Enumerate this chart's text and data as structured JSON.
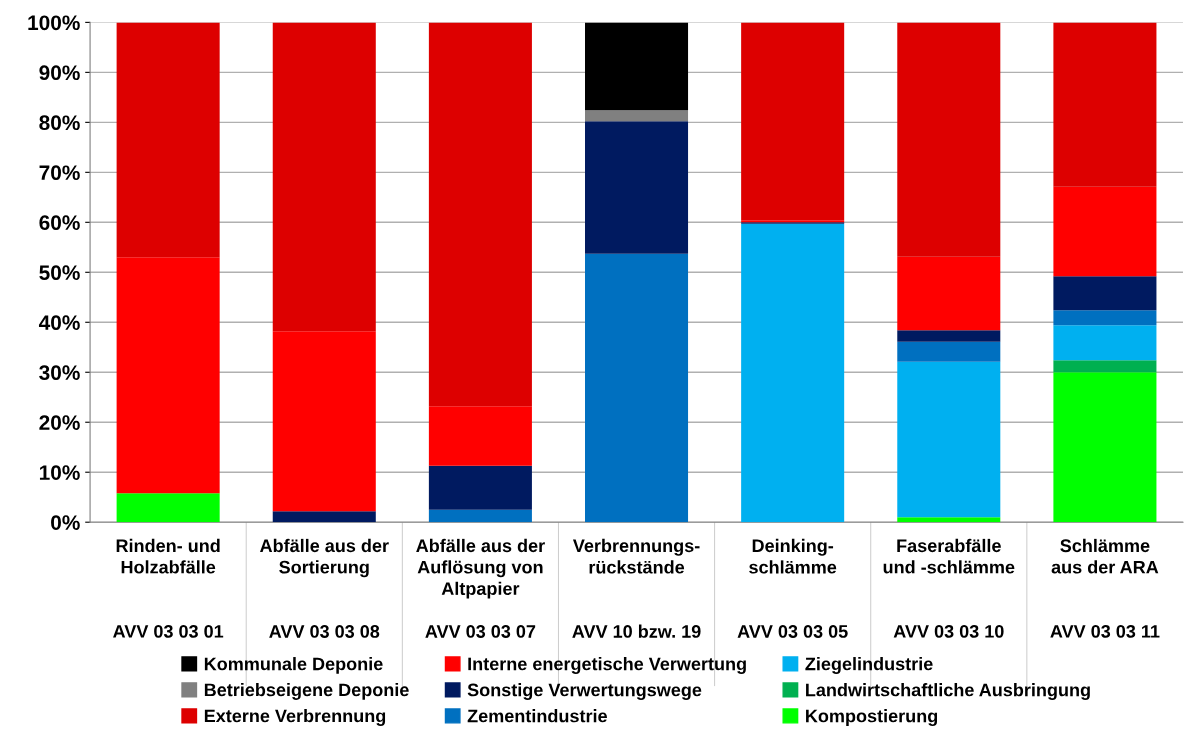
{
  "chart_data": {
    "type": "bar",
    "stacked": true,
    "categories": [
      "Rinden- und\nHolzabfälle\n\nAVV 03 03 01",
      "Abfälle aus der\nSortierung\n\nAVV 03 03 08",
      "Abfälle aus der\nAuflösung von\nAltpapier\n\nAVV 03 03 07",
      "Verbrennungs-\nrückstände\n\nAVV 10 bzw. 19",
      "Deinking-\nschlämme\n\nAVV 03 03 05",
      "Faserabfälle\nund -schlämme\n\nAVV 03 03 10",
      "Schlämme\naus der ARA\n\nAVV 03 03 11"
    ],
    "series": [
      {
        "name": "Kompostierung",
        "color": "#00ff00",
        "values": [
          5.8,
          null,
          null,
          null,
          null,
          1.0,
          30.0
        ]
      },
      {
        "name": "Landwirtschaftliche Ausbringung",
        "color": "#00b050",
        "values": [
          null,
          null,
          null,
          null,
          null,
          null,
          2.4
        ]
      },
      {
        "name": "Ziegelindustrie",
        "color": "#00b0f0",
        "values": [
          null,
          null,
          null,
          null,
          59.7,
          31.1,
          7.0
        ]
      },
      {
        "name": "Zementindustrie",
        "color": "#0070c0",
        "values": [
          null,
          null,
          2.5,
          53.7,
          null,
          4.0,
          3.0
        ]
      },
      {
        "name": "Sonstige Verwertungswege",
        "color": "#001a60",
        "values": [
          null,
          2.2,
          8.8,
          26.5,
          0.3,
          2.3,
          6.8
        ]
      },
      {
        "name": "Interne energetische Verwertung",
        "color": "#ff0000",
        "values": [
          47.2,
          36.0,
          11.9,
          null,
          0.4,
          14.7,
          17.9
        ]
      },
      {
        "name": "Externe Verbrennung",
        "color": "#dd0000",
        "values": [
          47.0,
          61.8,
          76.8,
          null,
          39.6,
          46.9,
          32.9
        ]
      },
      {
        "name": "Betriebseigene Deponie",
        "color": "#808080",
        "values": [
          null,
          null,
          null,
          2.2,
          null,
          null,
          null
        ]
      },
      {
        "name": "Kommunale Deponie",
        "color": "#000000",
        "values": [
          null,
          null,
          null,
          17.6,
          null,
          null,
          null
        ]
      }
    ],
    "ylim": [
      0,
      100
    ],
    "yticks": [
      {
        "value": 0,
        "label": "0%"
      },
      {
        "value": 10,
        "label": "10%"
      },
      {
        "value": 20,
        "label": "20%"
      },
      {
        "value": 30,
        "label": "30%"
      },
      {
        "value": 40,
        "label": "40%"
      },
      {
        "value": 50,
        "label": "50%"
      },
      {
        "value": 60,
        "label": "60%"
      },
      {
        "value": 70,
        "label": "70%"
      },
      {
        "value": 80,
        "label": "80%"
      },
      {
        "value": 90,
        "label": "90%"
      },
      {
        "value": 100,
        "label": "100%"
      }
    ],
    "grid": "y",
    "legend": "bottom"
  }
}
